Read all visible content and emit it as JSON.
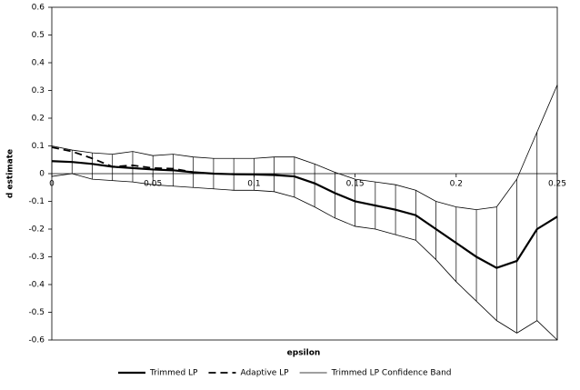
{
  "chart_data": {
    "type": "line",
    "x_label": "epsilon",
    "y_label": "d estimate",
    "x": [
      0,
      0.01,
      0.02,
      0.03,
      0.04,
      0.05,
      0.06,
      0.07,
      0.08,
      0.09,
      0.1,
      0.11,
      0.12,
      0.13,
      0.14,
      0.15,
      0.16,
      0.17,
      0.18,
      0.19,
      0.2,
      0.21,
      0.22,
      0.23,
      0.24,
      0.25
    ],
    "series": [
      {
        "name": "Trimmed LP",
        "color": "#000000",
        "style": "solid-thick",
        "values": [
          0.045,
          0.042,
          0.035,
          0.025,
          0.02,
          0.015,
          0.012,
          0.005,
          0.0,
          -0.002,
          -0.003,
          -0.005,
          -0.01,
          -0.035,
          -0.07,
          -0.1,
          -0.115,
          -0.13,
          -0.15,
          -0.2,
          -0.25,
          -0.3,
          -0.34,
          -0.315,
          -0.2,
          -0.155
        ]
      },
      {
        "name": "Adaptive LP",
        "color": "#000000",
        "style": "dashed",
        "values": [
          0.095,
          0.08,
          0.055,
          0.025,
          0.03,
          0.02,
          0.018,
          0.005,
          null,
          null,
          null,
          null,
          null,
          null,
          null,
          null,
          null,
          null,
          null,
          null,
          null,
          null,
          null,
          null,
          null,
          null
        ]
      }
    ],
    "band": {
      "name": "Trimmed LP Confidence Band",
      "color": "#000000",
      "upper": [
        0.1,
        0.085,
        0.075,
        0.07,
        0.08,
        0.065,
        0.07,
        0.06,
        0.055,
        0.055,
        0.055,
        0.06,
        0.06,
        0.035,
        0.005,
        -0.02,
        -0.03,
        -0.04,
        -0.06,
        -0.1,
        -0.12,
        -0.13,
        -0.12,
        -0.02,
        0.15,
        0.32
      ],
      "lower": [
        -0.01,
        0.0,
        -0.02,
        -0.025,
        -0.03,
        -0.04,
        -0.045,
        -0.05,
        -0.055,
        -0.06,
        -0.06,
        -0.065,
        -0.085,
        -0.12,
        -0.16,
        -0.19,
        -0.2,
        -0.22,
        -0.24,
        -0.31,
        -0.39,
        -0.46,
        -0.53,
        -0.575,
        -0.53,
        -0.6
      ]
    },
    "xlim": [
      0,
      0.25
    ],
    "xticks": [
      0,
      0.05,
      0.1,
      0.15,
      0.2,
      0.25
    ],
    "ylim": [
      -0.6,
      0.6
    ],
    "yticks": [
      0.6,
      0.5,
      0.4,
      0.3,
      0.2,
      0.1,
      0,
      -0.1,
      -0.2,
      -0.3,
      -0.4,
      -0.5,
      -0.6
    ],
    "legend": "bottom"
  }
}
